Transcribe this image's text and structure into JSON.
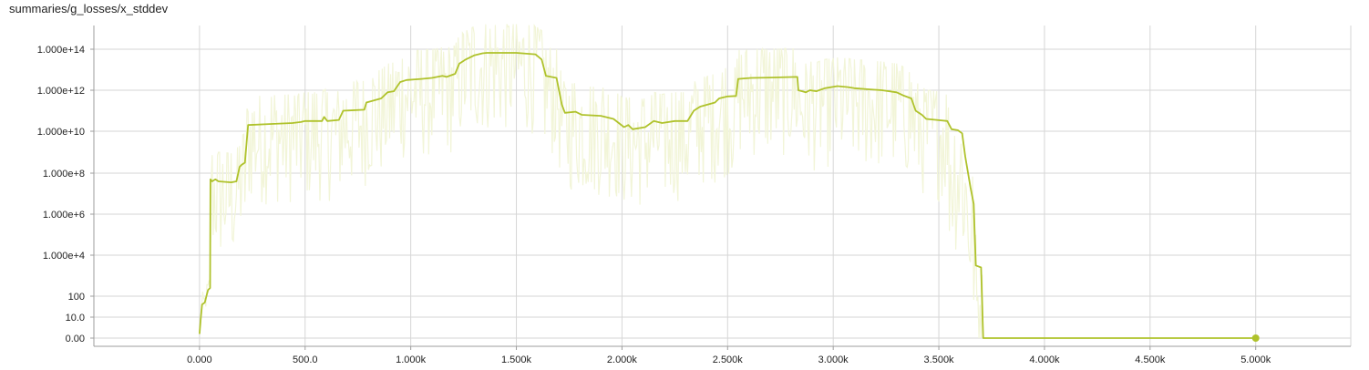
{
  "chart_data": {
    "type": "line",
    "title": "summaries/g_losses/x_stddev",
    "xlabel": "",
    "ylabel": "",
    "x_range": [
      -500,
      5450
    ],
    "y_scale": "symlog",
    "grid": true,
    "x_ticks": [
      0,
      500,
      1000,
      1500,
      2000,
      2500,
      3000,
      3500,
      4000,
      4500,
      5000
    ],
    "x_tick_labels": [
      "0.000",
      "500.0",
      "1.000k",
      "1.500k",
      "2.000k",
      "2.500k",
      "3.000k",
      "3.500k",
      "4.000k",
      "4.500k",
      "5.000k"
    ],
    "y_ticks": [
      0,
      10,
      100,
      10000,
      1000000,
      100000000,
      10000000000,
      1000000000000,
      100000000000000
    ],
    "y_tick_labels": [
      "0.00",
      "10.0",
      "100",
      "1.000e+4",
      "1.000e+6",
      "1.000e+8",
      "1.000e+10",
      "1.000e+12",
      "1.000e+14"
    ],
    "colors": {
      "smoothed": "#afc22b",
      "raw": "#f2f5d8"
    },
    "series": [
      {
        "values_log10": [
          [
            0,
            0.2
          ],
          [
            5,
            0.8
          ],
          [
            12,
            1.6
          ],
          [
            25,
            1.7
          ],
          [
            40,
            2.3
          ],
          [
            50,
            2.4
          ],
          [
            52,
            7.7
          ],
          [
            60,
            7.6
          ],
          [
            75,
            7.7
          ],
          [
            90,
            7.6
          ],
          [
            150,
            7.55
          ],
          [
            175,
            7.6
          ],
          [
            190,
            8.3
          ],
          [
            200,
            8.4
          ],
          [
            215,
            8.5
          ],
          [
            230,
            10.3
          ],
          [
            330,
            10.35
          ],
          [
            440,
            10.4
          ],
          [
            480,
            10.45
          ],
          [
            500,
            10.5
          ],
          [
            580,
            10.5
          ],
          [
            590,
            10.7
          ],
          [
            605,
            10.5
          ],
          [
            660,
            10.55
          ],
          [
            680,
            11.0
          ],
          [
            780,
            11.05
          ],
          [
            790,
            11.4
          ],
          [
            860,
            11.6
          ],
          [
            890,
            11.9
          ],
          [
            920,
            11.95
          ],
          [
            950,
            12.4
          ],
          [
            980,
            12.5
          ],
          [
            1050,
            12.55
          ],
          [
            1100,
            12.6
          ],
          [
            1150,
            12.7
          ],
          [
            1170,
            12.65
          ],
          [
            1210,
            12.8
          ],
          [
            1230,
            13.3
          ],
          [
            1260,
            13.5
          ],
          [
            1300,
            13.7
          ],
          [
            1340,
            13.8
          ],
          [
            1360,
            13.82
          ],
          [
            1500,
            13.82
          ],
          [
            1590,
            13.75
          ],
          [
            1620,
            13.5
          ],
          [
            1640,
            12.7
          ],
          [
            1690,
            12.6
          ],
          [
            1715,
            11.3
          ],
          [
            1730,
            10.9
          ],
          [
            1780,
            10.95
          ],
          [
            1810,
            10.8
          ],
          [
            1900,
            10.75
          ],
          [
            1960,
            10.6
          ],
          [
            2010,
            10.2
          ],
          [
            2030,
            10.3
          ],
          [
            2050,
            10.1
          ],
          [
            2110,
            10.2
          ],
          [
            2150,
            10.5
          ],
          [
            2190,
            10.4
          ],
          [
            2250,
            10.5
          ],
          [
            2310,
            10.5
          ],
          [
            2340,
            11.0
          ],
          [
            2370,
            11.2
          ],
          [
            2440,
            11.4
          ],
          [
            2460,
            11.6
          ],
          [
            2500,
            11.7
          ],
          [
            2540,
            11.72
          ],
          [
            2550,
            12.55
          ],
          [
            2610,
            12.6
          ],
          [
            2700,
            12.62
          ],
          [
            2830,
            12.65
          ],
          [
            2835,
            12.0
          ],
          [
            2870,
            11.9
          ],
          [
            2890,
            12.0
          ],
          [
            2920,
            11.95
          ],
          [
            2960,
            12.1
          ],
          [
            3020,
            12.2
          ],
          [
            3070,
            12.15
          ],
          [
            3100,
            12.1
          ],
          [
            3160,
            12.05
          ],
          [
            3230,
            12.0
          ],
          [
            3300,
            11.9
          ],
          [
            3330,
            11.75
          ],
          [
            3370,
            11.6
          ],
          [
            3390,
            11.0
          ],
          [
            3420,
            10.8
          ],
          [
            3440,
            10.6
          ],
          [
            3490,
            10.55
          ],
          [
            3540,
            10.5
          ],
          [
            3560,
            10.1
          ],
          [
            3590,
            10.05
          ],
          [
            3610,
            9.9
          ],
          [
            3625,
            8.8
          ],
          [
            3650,
            7.3
          ],
          [
            3665,
            6.5
          ],
          [
            3675,
            3.5
          ],
          [
            3700,
            3.4
          ],
          [
            3710,
            0.0
          ],
          [
            5000,
            0.0
          ]
        ]
      }
    ],
    "end_point": [
      5000,
      0.0
    ]
  }
}
